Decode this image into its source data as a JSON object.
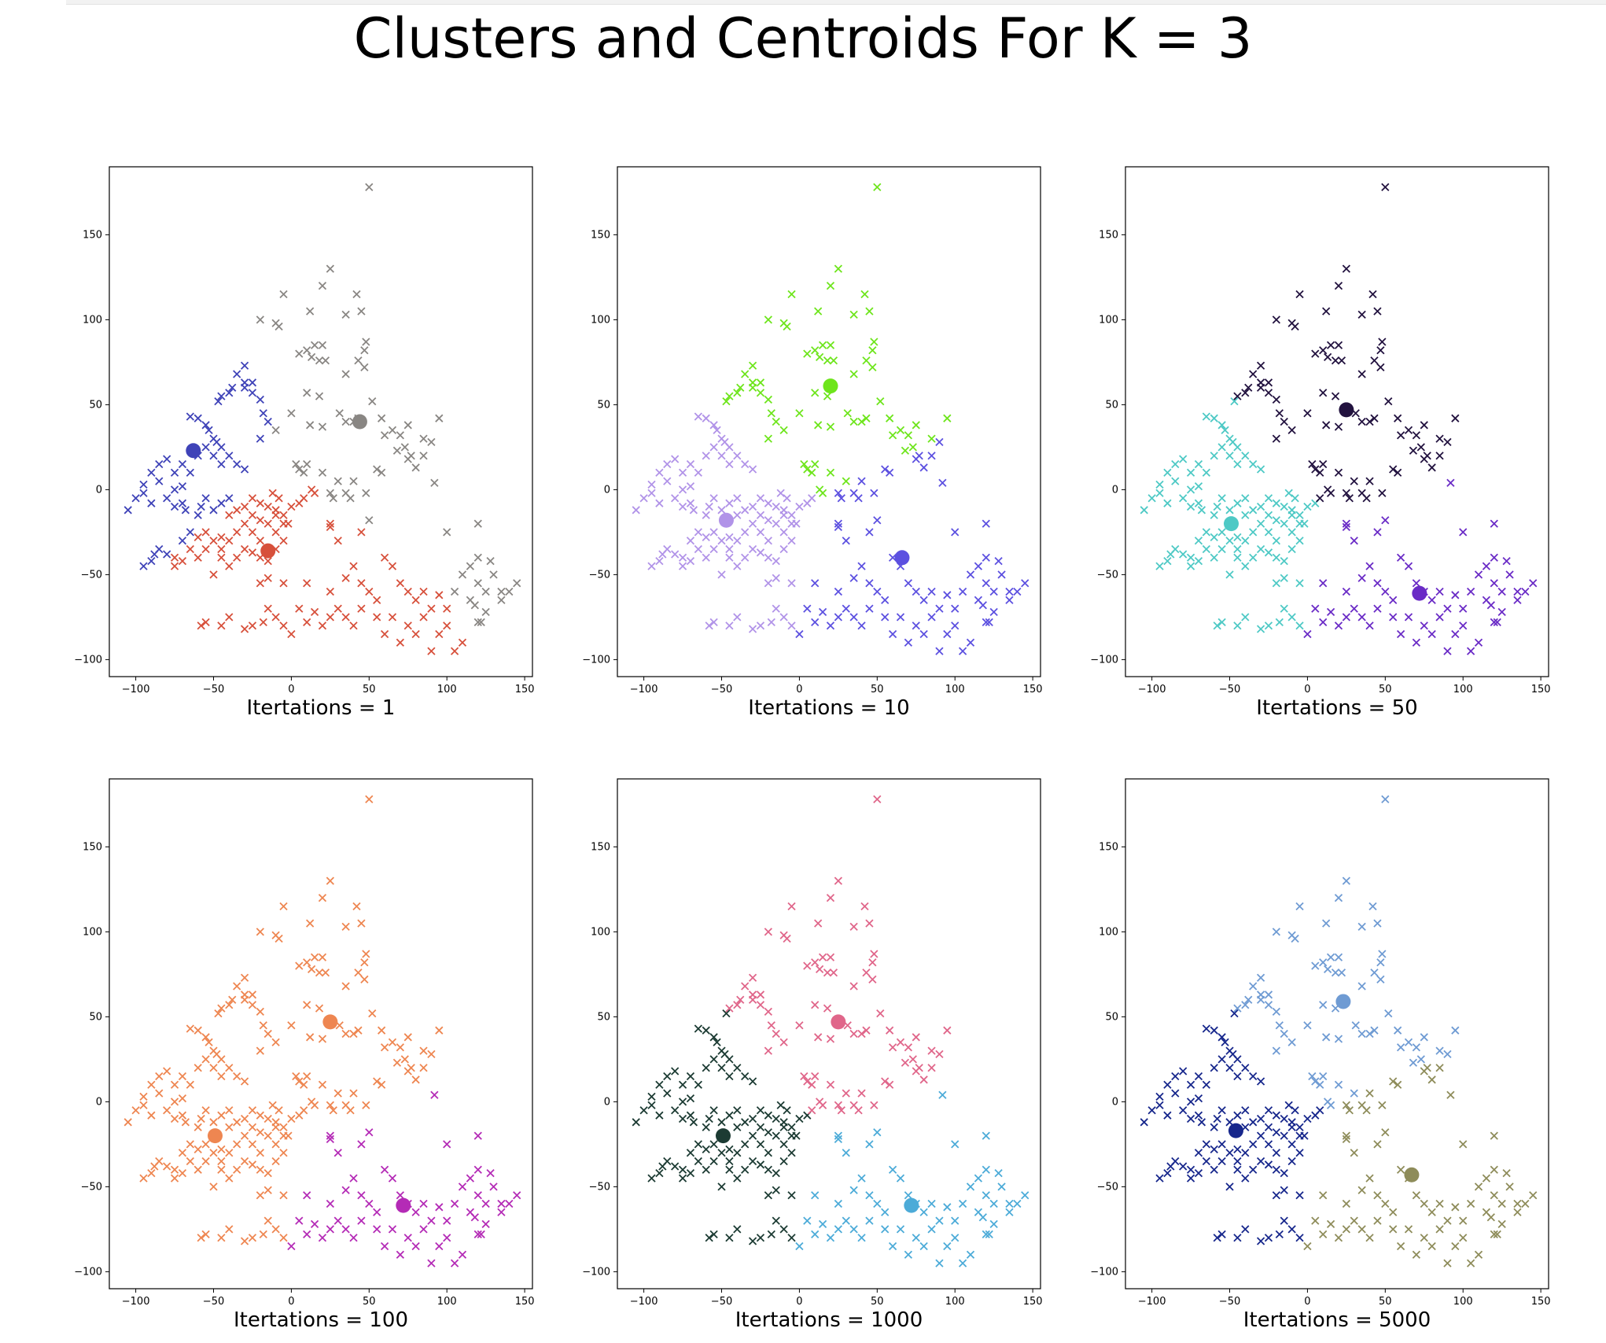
{
  "title": "Clusters and Centroids For K = 3",
  "chart_data": [
    {
      "type": "scatter",
      "xlabel": "Itertations = 1",
      "xlim": [
        -117,
        155
      ],
      "ylim": [
        -110,
        190
      ],
      "xticks": [
        -100,
        -50,
        0,
        50,
        100,
        150
      ],
      "yticks": [
        -100,
        -50,
        0,
        50,
        100,
        150
      ],
      "cluster_colors": [
        "#3f43b8",
        "#d7503b",
        "#898683"
      ],
      "centroids": [
        {
          "x": -63,
          "y": 23
        },
        {
          "x": -15,
          "y": -36
        },
        {
          "x": 44,
          "y": 40
        }
      ]
    },
    {
      "type": "scatter",
      "xlabel": "Itertations = 10",
      "xlim": [
        -117,
        155
      ],
      "ylim": [
        -110,
        190
      ],
      "xticks": [
        -100,
        -50,
        0,
        50,
        100,
        150
      ],
      "yticks": [
        -100,
        -50,
        0,
        50,
        100,
        150
      ],
      "cluster_colors": [
        "#b193e8",
        "#6ee51c",
        "#5c50e0"
      ],
      "centroids": [
        {
          "x": -47,
          "y": -18
        },
        {
          "x": 20,
          "y": 61
        },
        {
          "x": 66,
          "y": -40
        }
      ]
    },
    {
      "type": "scatter",
      "xlabel": "Itertations = 50",
      "xlim": [
        -117,
        155
      ],
      "ylim": [
        -110,
        190
      ],
      "xticks": [
        -100,
        -50,
        0,
        50,
        100,
        150
      ],
      "yticks": [
        -100,
        -50,
        0,
        50,
        100,
        150
      ],
      "cluster_colors": [
        "#4ec9c5",
        "#22123f",
        "#6a2bc6"
      ],
      "centroids": [
        {
          "x": -49,
          "y": -20
        },
        {
          "x": 25,
          "y": 47
        },
        {
          "x": 72,
          "y": -61
        }
      ]
    },
    {
      "type": "scatter",
      "xlabel": "Itertations = 100",
      "xlim": [
        -117,
        155
      ],
      "ylim": [
        -110,
        190
      ],
      "xticks": [
        -100,
        -50,
        0,
        50,
        100,
        150
      ],
      "yticks": [
        -100,
        -50,
        0,
        50,
        100,
        150
      ],
      "cluster_colors": [
        "#ee8651",
        "#ee8651",
        "#b42bb6"
      ],
      "centroids": [
        {
          "x": -49,
          "y": -20
        },
        {
          "x": 25,
          "y": 47
        },
        {
          "x": 72,
          "y": -61
        }
      ]
    },
    {
      "type": "scatter",
      "xlabel": "Itertations = 1000",
      "xlim": [
        -117,
        155
      ],
      "ylim": [
        -110,
        190
      ],
      "xticks": [
        -100,
        -50,
        0,
        50,
        100,
        150
      ],
      "yticks": [
        -100,
        -50,
        0,
        50,
        100,
        150
      ],
      "cluster_colors": [
        "#1c3b33",
        "#e0668a",
        "#4cabd8"
      ],
      "centroids": [
        {
          "x": -49,
          "y": -20
        },
        {
          "x": 25,
          "y": 47
        },
        {
          "x": 72,
          "y": -61
        }
      ]
    },
    {
      "type": "scatter",
      "xlabel": "Itertations = 5000",
      "xlim": [
        -117,
        155
      ],
      "ylim": [
        -110,
        190
      ],
      "xticks": [
        -100,
        -50,
        0,
        50,
        100,
        150
      ],
      "yticks": [
        -100,
        -50,
        0,
        50,
        100,
        150
      ],
      "cluster_colors": [
        "#17278c",
        "#6f9bd3",
        "#8e8c5a"
      ],
      "centroids": [
        {
          "x": -46,
          "y": -17
        },
        {
          "x": 23,
          "y": 59
        },
        {
          "x": 67,
          "y": -43
        }
      ]
    }
  ],
  "points": [
    [
      50,
      178
    ],
    [
      25,
      130
    ],
    [
      -5,
      115
    ],
    [
      20,
      120
    ],
    [
      42,
      115
    ],
    [
      35,
      103
    ],
    [
      45,
      105
    ],
    [
      12,
      105
    ],
    [
      -10,
      98
    ],
    [
      -8,
      96
    ],
    [
      48,
      87
    ],
    [
      47,
      82
    ],
    [
      15,
      85
    ],
    [
      20,
      85
    ],
    [
      10,
      82
    ],
    [
      5,
      80
    ],
    [
      13,
      78
    ],
    [
      22,
      76
    ],
    [
      18,
      76
    ],
    [
      43,
      76
    ],
    [
      47,
      72
    ],
    [
      35,
      68
    ],
    [
      10,
      57
    ],
    [
      18,
      55
    ],
    [
      52,
      52
    ],
    [
      12,
      38
    ],
    [
      20,
      37
    ],
    [
      35,
      40
    ],
    [
      31,
      45
    ],
    [
      43,
      42
    ],
    [
      40,
      40
    ],
    [
      58,
      42
    ],
    [
      75,
      38
    ],
    [
      95,
      42
    ],
    [
      65,
      35
    ],
    [
      70,
      32
    ],
    [
      60,
      32
    ],
    [
      85,
      30
    ],
    [
      90,
      28
    ],
    [
      73,
      25
    ],
    [
      77,
      20
    ],
    [
      68,
      23
    ],
    [
      85,
      20
    ],
    [
      75,
      18
    ],
    [
      80,
      13
    ],
    [
      55,
      12
    ],
    [
      58,
      10
    ],
    [
      40,
      5
    ],
    [
      30,
      5
    ],
    [
      20,
      10
    ],
    [
      10,
      15
    ],
    [
      5,
      12
    ],
    [
      8,
      10
    ],
    [
      3,
      15
    ],
    [
      13,
      0
    ],
    [
      25,
      -2
    ],
    [
      27,
      -5
    ],
    [
      35,
      -2
    ],
    [
      38,
      -5
    ],
    [
      48,
      -2
    ],
    [
      50,
      -18
    ],
    [
      45,
      -25
    ],
    [
      25,
      -22
    ],
    [
      25,
      -20
    ],
    [
      92,
      4
    ],
    [
      -45,
      -35
    ],
    [
      -20,
      100
    ],
    [
      -47,
      52
    ],
    [
      -45,
      55
    ],
    [
      -40,
      57
    ],
    [
      -30,
      63
    ],
    [
      -38,
      60
    ],
    [
      -30,
      60
    ],
    [
      -25,
      57
    ],
    [
      -35,
      68
    ],
    [
      -30,
      73
    ],
    [
      -25,
      63
    ],
    [
      -20,
      53
    ],
    [
      -18,
      45
    ],
    [
      -15,
      40
    ],
    [
      0,
      45
    ],
    [
      -10,
      35
    ],
    [
      -20,
      30
    ],
    [
      -65,
      43
    ],
    [
      -60,
      42
    ],
    [
      -55,
      38
    ],
    [
      -53,
      35
    ],
    [
      -50,
      30
    ],
    [
      -48,
      28
    ],
    [
      -45,
      25
    ],
    [
      -55,
      25
    ],
    [
      -60,
      20
    ],
    [
      -50,
      20
    ],
    [
      -45,
      15
    ],
    [
      -40,
      20
    ],
    [
      -35,
      15
    ],
    [
      -30,
      12
    ],
    [
      -80,
      18
    ],
    [
      -85,
      15
    ],
    [
      -75,
      10
    ],
    [
      -70,
      15
    ],
    [
      -65,
      10
    ],
    [
      -85,
      5
    ],
    [
      -75,
      0
    ],
    [
      -70,
      2
    ],
    [
      -90,
      10
    ],
    [
      -95,
      3
    ],
    [
      -100,
      -5
    ],
    [
      -105,
      -12
    ],
    [
      -95,
      -2
    ],
    [
      -90,
      -8
    ],
    [
      -80,
      -5
    ],
    [
      -75,
      -10
    ],
    [
      -70,
      -8
    ],
    [
      -60,
      -15
    ],
    [
      -58,
      -10
    ],
    [
      -55,
      -5
    ],
    [
      -50,
      -12
    ],
    [
      -45,
      -8
    ],
    [
      -40,
      -15
    ],
    [
      -35,
      -12
    ],
    [
      -30,
      -10
    ],
    [
      -25,
      -5
    ],
    [
      -20,
      -8
    ],
    [
      -15,
      -10
    ],
    [
      -10,
      -12
    ],
    [
      -5,
      -15
    ],
    [
      0,
      -10
    ],
    [
      -12,
      -2
    ],
    [
      -8,
      -5
    ],
    [
      -5,
      -20
    ],
    [
      -10,
      -25
    ],
    [
      -15,
      -20
    ],
    [
      -20,
      -18
    ],
    [
      -25,
      -15
    ],
    [
      -30,
      -20
    ],
    [
      -35,
      -25
    ],
    [
      -40,
      -30
    ],
    [
      -45,
      -28
    ],
    [
      -50,
      -30
    ],
    [
      -55,
      -25
    ],
    [
      -60,
      -28
    ],
    [
      -65,
      -25
    ],
    [
      -55,
      -35
    ],
    [
      -60,
      -40
    ],
    [
      -65,
      -35
    ],
    [
      -70,
      -30
    ],
    [
      -75,
      -40
    ],
    [
      -80,
      -38
    ],
    [
      -85,
      -35
    ],
    [
      -88,
      -38
    ],
    [
      -90,
      -42
    ],
    [
      -95,
      -45
    ],
    [
      -75,
      -45
    ],
    [
      -70,
      -42
    ],
    [
      -50,
      -50
    ],
    [
      -40,
      -45
    ],
    [
      -45,
      -40
    ],
    [
      -35,
      -40
    ],
    [
      -25,
      -37
    ],
    [
      -20,
      -40
    ],
    [
      -15,
      -42
    ],
    [
      -10,
      -35
    ],
    [
      -5,
      -30
    ],
    [
      -20,
      -30
    ],
    [
      -30,
      -35
    ],
    [
      -25,
      -25
    ],
    [
      -10,
      -15
    ],
    [
      5,
      -8
    ],
    [
      -2,
      -20
    ],
    [
      8,
      -5
    ],
    [
      15,
      -2
    ],
    [
      -40,
      -5
    ],
    [
      -68,
      -12
    ],
    [
      -20,
      -55
    ],
    [
      30,
      -30
    ],
    [
      40,
      -45
    ],
    [
      60,
      -40
    ],
    [
      65,
      -45
    ],
    [
      70,
      -55
    ],
    [
      75,
      -60
    ],
    [
      80,
      -65
    ],
    [
      85,
      -60
    ],
    [
      90,
      -70
    ],
    [
      95,
      -62
    ],
    [
      100,
      -70
    ],
    [
      105,
      -60
    ],
    [
      110,
      -50
    ],
    [
      115,
      -45
    ],
    [
      120,
      -55
    ],
    [
      125,
      -60
    ],
    [
      130,
      -50
    ],
    [
      135,
      -65
    ],
    [
      140,
      -60
    ],
    [
      145,
      -55
    ],
    [
      120,
      -40
    ],
    [
      100,
      -80
    ],
    [
      110,
      -90
    ],
    [
      90,
      -95
    ],
    [
      80,
      -85
    ],
    [
      70,
      -90
    ],
    [
      60,
      -85
    ],
    [
      55,
      -75
    ],
    [
      45,
      -70
    ],
    [
      40,
      -80
    ],
    [
      35,
      -75
    ],
    [
      30,
      -70
    ],
    [
      25,
      -75
    ],
    [
      20,
      -80
    ],
    [
      15,
      -72
    ],
    [
      10,
      -78
    ],
    [
      5,
      -70
    ],
    [
      0,
      -85
    ],
    [
      -5,
      -80
    ],
    [
      -10,
      -75
    ],
    [
      -15,
      -70
    ],
    [
      -18,
      -78
    ],
    [
      -25,
      -80
    ],
    [
      -30,
      -82
    ],
    [
      -40,
      -75
    ],
    [
      -45,
      -80
    ],
    [
      -55,
      -78
    ],
    [
      -58,
      -80
    ],
    [
      120,
      -78
    ],
    [
      122,
      -78
    ],
    [
      125,
      -72
    ],
    [
      118,
      -68
    ],
    [
      105,
      -95
    ],
    [
      -15,
      -52
    ],
    [
      -5,
      -55
    ],
    [
      10,
      -55
    ],
    [
      25,
      -60
    ],
    [
      50,
      -60
    ],
    [
      35,
      -52
    ],
    [
      45,
      -55
    ],
    [
      55,
      -65
    ],
    [
      65,
      -75
    ],
    [
      75,
      -80
    ],
    [
      85,
      -75
    ],
    [
      95,
      -85
    ],
    [
      135,
      -60
    ],
    [
      115,
      -65
    ],
    [
      128,
      -42
    ],
    [
      120,
      -20
    ],
    [
      100,
      -25
    ]
  ]
}
